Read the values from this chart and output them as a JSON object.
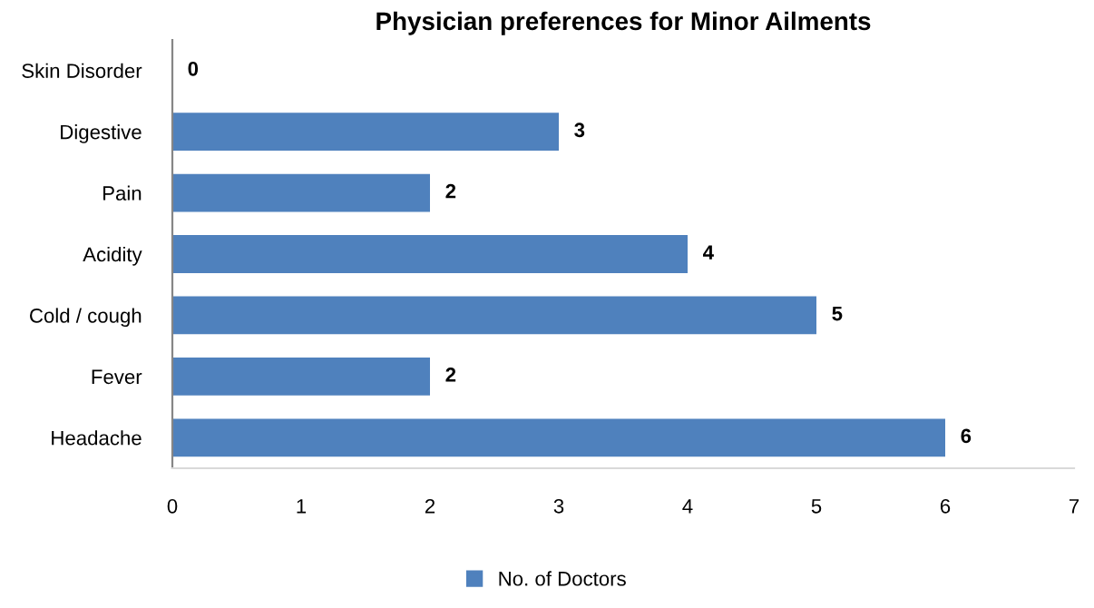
{
  "chart_data": {
    "type": "bar",
    "title": "Physician preferences for Minor Ailments",
    "orientation": "horizontal",
    "categories": [
      "Skin Disorder",
      "Digestive",
      "Pain",
      "Acidity",
      "Cold / cough",
      "Fever",
      "Headache"
    ],
    "series": [
      {
        "name": "No. of Doctors",
        "color": "#4f81bd",
        "values": [
          0,
          3,
          2,
          4,
          5,
          2,
          6
        ]
      }
    ],
    "xlim": [
      0,
      7
    ],
    "xticks": [
      0,
      1,
      2,
      3,
      4,
      5,
      6,
      7
    ],
    "grid": false,
    "legend": "bottom",
    "data_labels": true
  }
}
